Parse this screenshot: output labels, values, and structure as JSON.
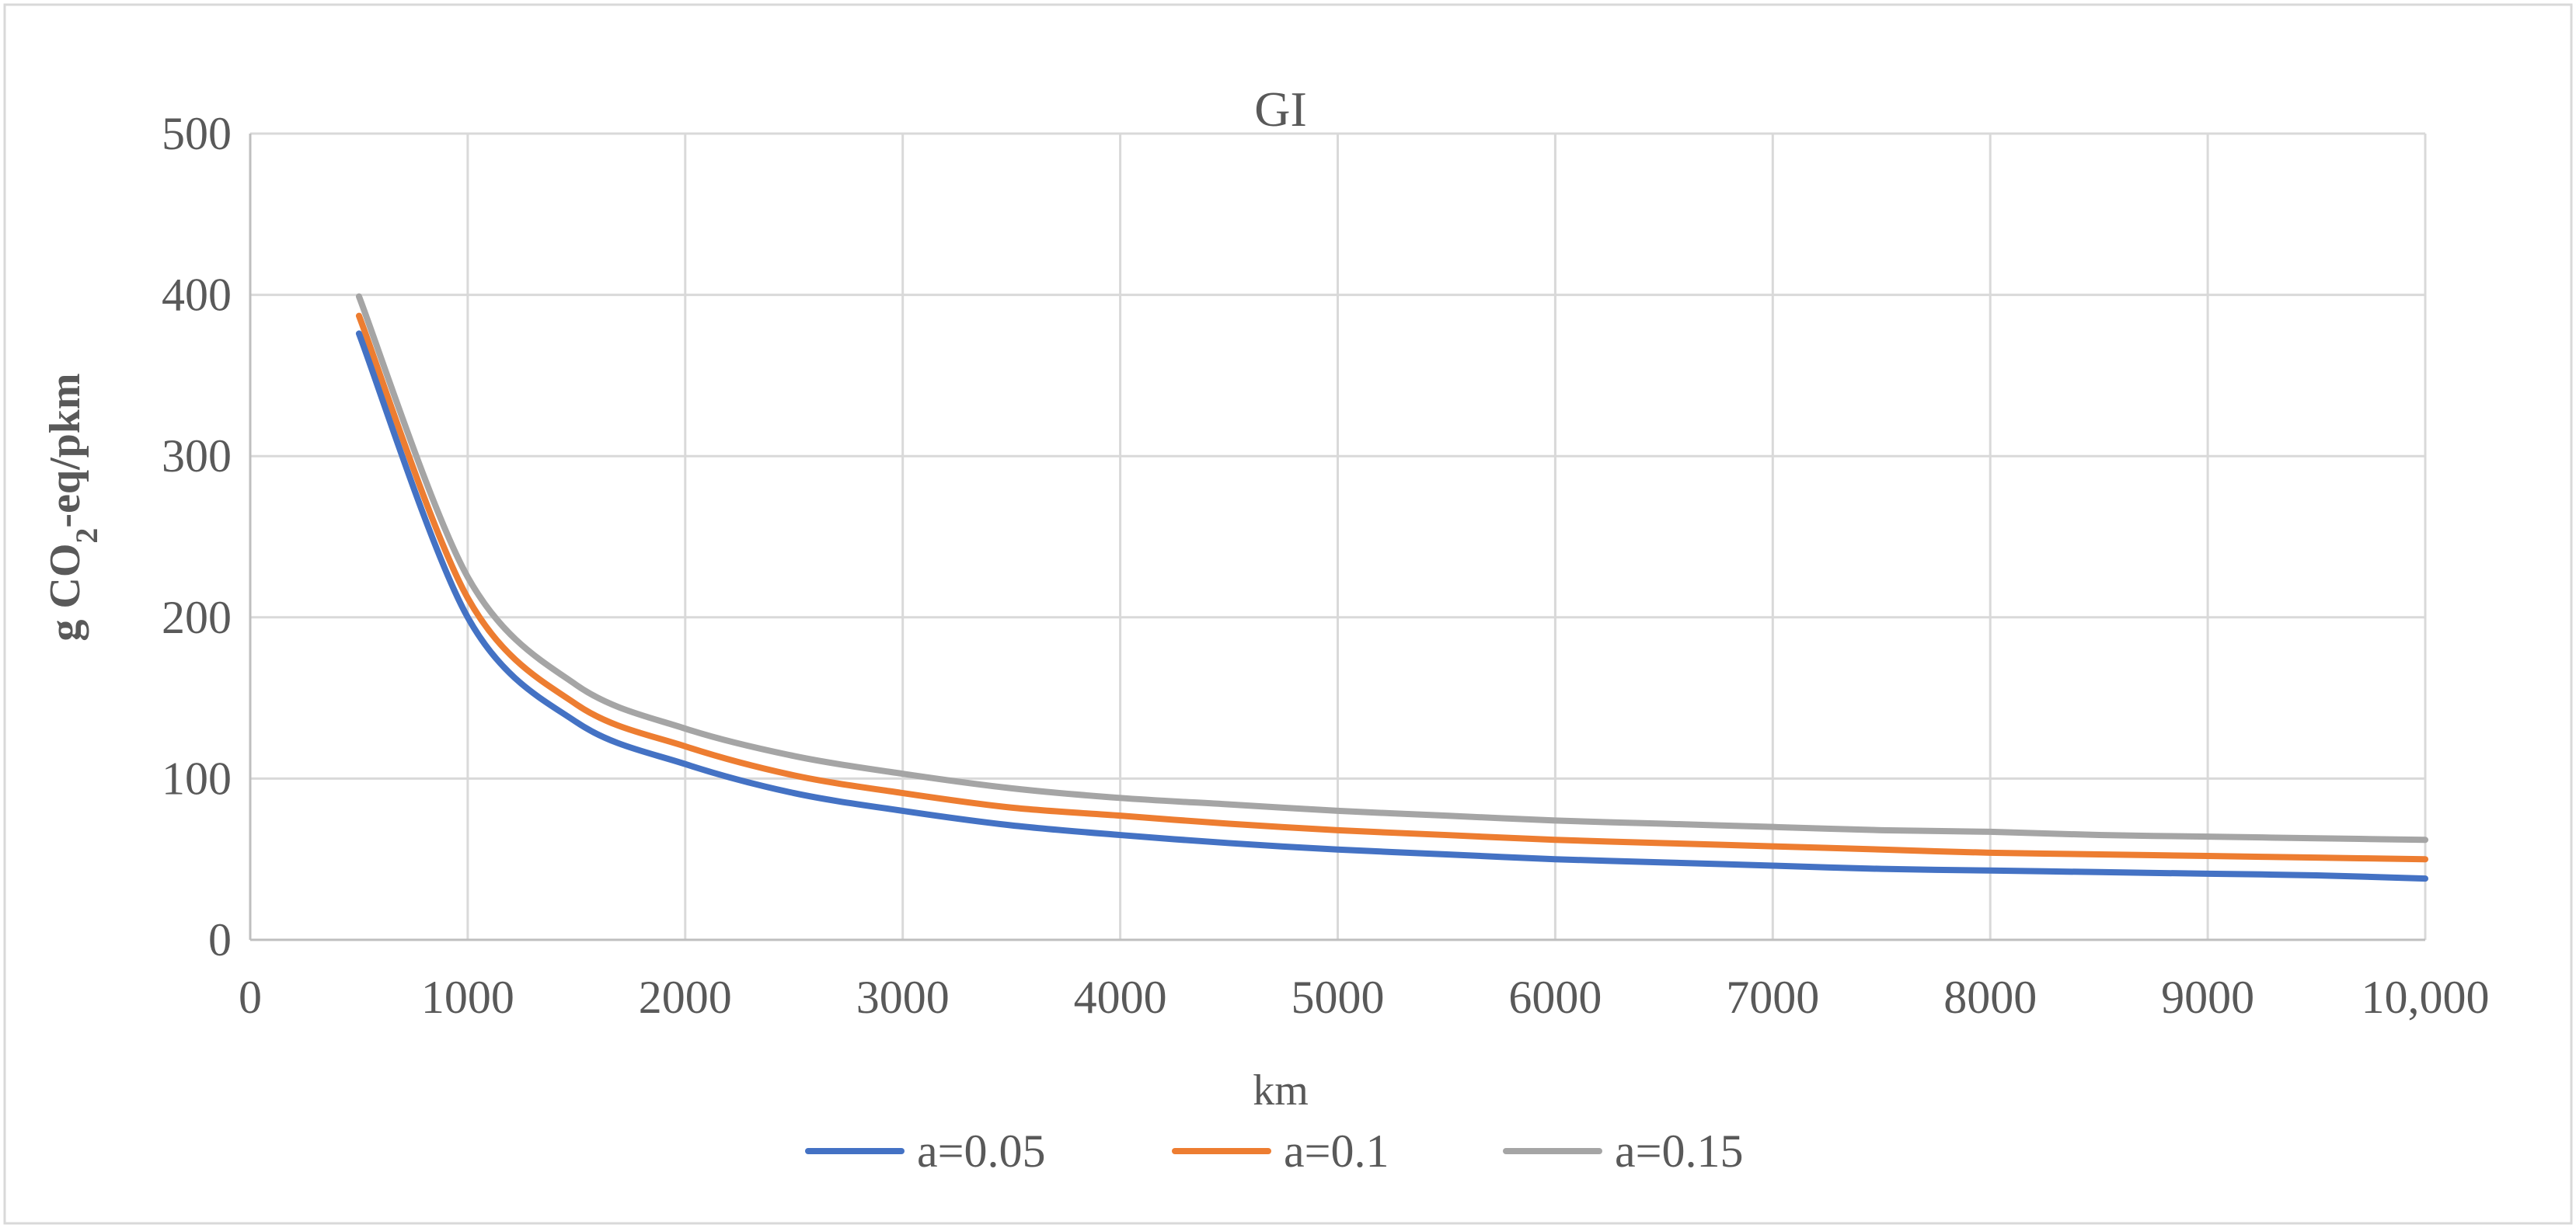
{
  "chart_data": {
    "type": "line",
    "title": "GI",
    "xlabel": "km",
    "ylabel": {
      "prefix": "g CO",
      "subscript": "2",
      "suffix": "-eq/pkm"
    },
    "xlim": [
      0,
      10000
    ],
    "ylim": [
      0,
      500
    ],
    "grid": true,
    "legend_position": "bottom",
    "x_ticks": [
      {
        "value": 0,
        "label": "0"
      },
      {
        "value": 1000,
        "label": "1000"
      },
      {
        "value": 2000,
        "label": "2000"
      },
      {
        "value": 3000,
        "label": "3000"
      },
      {
        "value": 4000,
        "label": "4000"
      },
      {
        "value": 5000,
        "label": "5000"
      },
      {
        "value": 6000,
        "label": "6000"
      },
      {
        "value": 7000,
        "label": "7000"
      },
      {
        "value": 8000,
        "label": "8000"
      },
      {
        "value": 9000,
        "label": "9000"
      },
      {
        "value": 10000,
        "label": "10,000"
      }
    ],
    "y_ticks": [
      {
        "value": 0,
        "label": "0"
      },
      {
        "value": 100,
        "label": "100"
      },
      {
        "value": 200,
        "label": "200"
      },
      {
        "value": 300,
        "label": "300"
      },
      {
        "value": 400,
        "label": "400"
      },
      {
        "value": 500,
        "label": "500"
      }
    ],
    "x": [
      500,
      1000,
      1500,
      2000,
      2500,
      3000,
      3500,
      4000,
      4500,
      5000,
      5500,
      6000,
      6500,
      7000,
      7500,
      8000,
      8500,
      9000,
      9500,
      10000
    ],
    "series": [
      {
        "name": "a=0.05",
        "color": "#4472C4",
        "values": [
          376,
          200,
          135,
          109,
          91,
          80,
          71,
          65,
          60,
          56,
          53,
          50,
          48,
          46,
          44,
          43,
          42,
          41,
          40,
          38
        ]
      },
      {
        "name": "a=0.1",
        "color": "#ED7D31",
        "values": [
          387,
          212,
          146,
          120,
          102,
          91,
          82,
          77,
          72,
          68,
          65,
          62,
          60,
          58,
          56,
          54,
          53,
          52,
          51,
          50
        ]
      },
      {
        "name": "a=0.15",
        "color": "#A5A5A5",
        "values": [
          399,
          225,
          158,
          131,
          114,
          103,
          94,
          88,
          84,
          80,
          77,
          74,
          72,
          70,
          68,
          67,
          65,
          64,
          63,
          62
        ]
      }
    ]
  }
}
